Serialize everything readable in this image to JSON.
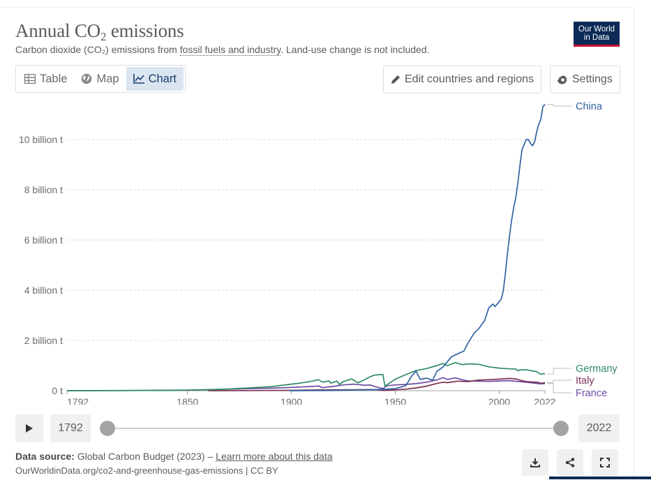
{
  "header": {
    "title_main": "Annual CO",
    "title_sub": "2",
    "title_tail": " emissions",
    "subtitle_pre": "Carbon dioxide (CO₂) emissions from ",
    "subtitle_link": "fossil fuels and industry",
    "subtitle_post": ". Land-use change is not included.",
    "logo_line1": "Our World",
    "logo_line2": "in Data"
  },
  "tabs": [
    {
      "label": "Table",
      "icon": "table-icon"
    },
    {
      "label": "Map",
      "icon": "globe-icon"
    },
    {
      "label": "Chart",
      "icon": "line-chart-icon",
      "active": true
    }
  ],
  "toolbar": {
    "edit_label": "Edit countries and regions",
    "settings_label": "Settings"
  },
  "timeline": {
    "start_year": "1792",
    "end_year": "2022"
  },
  "footer": {
    "source_label": "Data source:",
    "source_text": " Global Carbon Budget (2023) – ",
    "learn_more": "Learn more about this data",
    "url_text": "OurWorldinData.org/co2-and-greenhouse-gas-emissions | CC BY"
  },
  "colors": {
    "China": "#2f62a1",
    "Germany": "#2e8a62",
    "Italy": "#7a2f52",
    "France": "#6b4ca3"
  },
  "chart_data": {
    "type": "line",
    "title": "Annual CO₂ emissions",
    "ylabel": "",
    "xlabel": "",
    "xlim": [
      1792,
      2022
    ],
    "ylim": [
      0,
      11500000000
    ],
    "x_ticks": [
      "1792",
      "1850",
      "1900",
      "1950",
      "2000",
      "2022"
    ],
    "y_ticks": [
      {
        "value": 0,
        "label": "0 t"
      },
      {
        "value": 2000000000,
        "label": "2 billion t"
      },
      {
        "value": 4000000000,
        "label": "4 billion t"
      },
      {
        "value": 6000000000,
        "label": "6 billion t"
      },
      {
        "value": 8000000000,
        "label": "8 billion t"
      },
      {
        "value": 10000000000,
        "label": "10 billion t"
      }
    ],
    "grid": true,
    "legend": "right-end labels",
    "series": [
      {
        "name": "China",
        "points": [
          [
            1899,
            0
          ],
          [
            1920,
            10000000
          ],
          [
            1940,
            40000000
          ],
          [
            1950,
            80000000
          ],
          [
            1955,
            200000000
          ],
          [
            1958,
            600000000
          ],
          [
            1960,
            780000000
          ],
          [
            1962,
            450000000
          ],
          [
            1965,
            500000000
          ],
          [
            1968,
            420000000
          ],
          [
            1970,
            770000000
          ],
          [
            1973,
            950000000
          ],
          [
            1975,
            1150000000
          ],
          [
            1977,
            1350000000
          ],
          [
            1980,
            1470000000
          ],
          [
            1983,
            1580000000
          ],
          [
            1985,
            1900000000
          ],
          [
            1988,
            2300000000
          ],
          [
            1990,
            2450000000
          ],
          [
            1993,
            2800000000
          ],
          [
            1995,
            3300000000
          ],
          [
            1997,
            3450000000
          ],
          [
            1998,
            3350000000
          ],
          [
            2000,
            3550000000
          ],
          [
            2001,
            3650000000
          ],
          [
            2002,
            4000000000
          ],
          [
            2003,
            4700000000
          ],
          [
            2004,
            5500000000
          ],
          [
            2005,
            6200000000
          ],
          [
            2006,
            6800000000
          ],
          [
            2007,
            7300000000
          ],
          [
            2008,
            7700000000
          ],
          [
            2009,
            8300000000
          ],
          [
            2010,
            9000000000
          ],
          [
            2011,
            9600000000
          ],
          [
            2012,
            9800000000
          ],
          [
            2013,
            10000000000
          ],
          [
            2014,
            10000000000
          ],
          [
            2015,
            9850000000
          ],
          [
            2016,
            9750000000
          ],
          [
            2017,
            9900000000
          ],
          [
            2018,
            10300000000
          ],
          [
            2019,
            10600000000
          ],
          [
            2020,
            10800000000
          ],
          [
            2021,
            11300000000
          ],
          [
            2022,
            11400000000
          ]
        ]
      },
      {
        "name": "Germany",
        "points": [
          [
            1792,
            0
          ],
          [
            1830,
            10000000
          ],
          [
            1850,
            20000000
          ],
          [
            1860,
            40000000
          ],
          [
            1870,
            70000000
          ],
          [
            1880,
            110000000
          ],
          [
            1890,
            160000000
          ],
          [
            1900,
            260000000
          ],
          [
            1905,
            310000000
          ],
          [
            1910,
            380000000
          ],
          [
            1913,
            440000000
          ],
          [
            1915,
            340000000
          ],
          [
            1918,
            390000000
          ],
          [
            1919,
            300000000
          ],
          [
            1922,
            380000000
          ],
          [
            1923,
            250000000
          ],
          [
            1925,
            360000000
          ],
          [
            1929,
            470000000
          ],
          [
            1932,
            310000000
          ],
          [
            1935,
            430000000
          ],
          [
            1938,
            560000000
          ],
          [
            1940,
            620000000
          ],
          [
            1944,
            650000000
          ],
          [
            1945,
            180000000
          ],
          [
            1946,
            240000000
          ],
          [
            1950,
            460000000
          ],
          [
            1955,
            640000000
          ],
          [
            1960,
            800000000
          ],
          [
            1965,
            880000000
          ],
          [
            1970,
            1000000000
          ],
          [
            1973,
            1080000000
          ],
          [
            1975,
            1000000000
          ],
          [
            1979,
            1120000000
          ],
          [
            1982,
            1040000000
          ],
          [
            1985,
            1060000000
          ],
          [
            1987,
            1070000000
          ],
          [
            1990,
            1050000000
          ],
          [
            1995,
            950000000
          ],
          [
            2000,
            900000000
          ],
          [
            2005,
            870000000
          ],
          [
            2008,
            860000000
          ],
          [
            2009,
            790000000
          ],
          [
            2010,
            830000000
          ],
          [
            2013,
            840000000
          ],
          [
            2015,
            800000000
          ],
          [
            2018,
            760000000
          ],
          [
            2020,
            650000000
          ],
          [
            2021,
            680000000
          ],
          [
            2022,
            670000000
          ]
        ]
      },
      {
        "name": "Italy",
        "points": [
          [
            1860,
            0
          ],
          [
            1880,
            5000000
          ],
          [
            1900,
            15000000
          ],
          [
            1913,
            30000000
          ],
          [
            1925,
            35000000
          ],
          [
            1940,
            45000000
          ],
          [
            1945,
            10000000
          ],
          [
            1950,
            35000000
          ],
          [
            1955,
            60000000
          ],
          [
            1960,
            110000000
          ],
          [
            1965,
            180000000
          ],
          [
            1970,
            290000000
          ],
          [
            1973,
            340000000
          ],
          [
            1975,
            320000000
          ],
          [
            1980,
            380000000
          ],
          [
            1985,
            360000000
          ],
          [
            1990,
            420000000
          ],
          [
            1995,
            440000000
          ],
          [
            2000,
            460000000
          ],
          [
            2005,
            490000000
          ],
          [
            2008,
            470000000
          ],
          [
            2010,
            420000000
          ],
          [
            2013,
            360000000
          ],
          [
            2015,
            350000000
          ],
          [
            2019,
            330000000
          ],
          [
            2020,
            290000000
          ],
          [
            2022,
            320000000
          ]
        ]
      },
      {
        "name": "France",
        "points": [
          [
            1792,
            0
          ],
          [
            1820,
            5000000
          ],
          [
            1850,
            25000000
          ],
          [
            1870,
            60000000
          ],
          [
            1890,
            100000000
          ],
          [
            1900,
            130000000
          ],
          [
            1910,
            170000000
          ],
          [
            1913,
            190000000
          ],
          [
            1915,
            120000000
          ],
          [
            1920,
            170000000
          ],
          [
            1925,
            230000000
          ],
          [
            1930,
            260000000
          ],
          [
            1935,
            220000000
          ],
          [
            1938,
            230000000
          ],
          [
            1940,
            170000000
          ],
          [
            1944,
            80000000
          ],
          [
            1946,
            200000000
          ],
          [
            1950,
            230000000
          ],
          [
            1955,
            250000000
          ],
          [
            1960,
            280000000
          ],
          [
            1965,
            340000000
          ],
          [
            1970,
            430000000
          ],
          [
            1973,
            520000000
          ],
          [
            1975,
            450000000
          ],
          [
            1979,
            510000000
          ],
          [
            1982,
            440000000
          ],
          [
            1985,
            390000000
          ],
          [
            1990,
            380000000
          ],
          [
            1995,
            370000000
          ],
          [
            2000,
            390000000
          ],
          [
            2005,
            400000000
          ],
          [
            2010,
            360000000
          ],
          [
            2015,
            320000000
          ],
          [
            2020,
            270000000
          ],
          [
            2022,
            290000000
          ]
        ]
      }
    ]
  }
}
